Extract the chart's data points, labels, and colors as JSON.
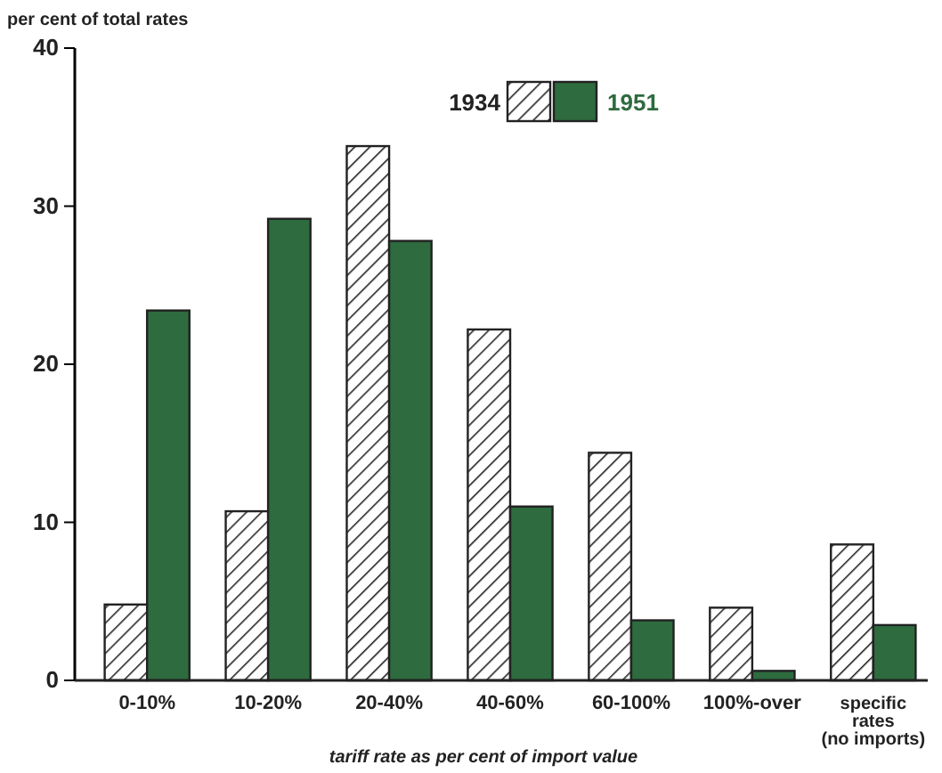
{
  "chart_data": {
    "type": "bar",
    "ylabel": "per cent of total rates",
    "xlabel": "tariff rate as per cent of import value",
    "categories": [
      "0-10%",
      "10-20%",
      "20-40%",
      "40-60%",
      "60-100%",
      "100%-over",
      "specific rates (no imports)"
    ],
    "series": [
      {
        "name": "1934",
        "color": "#222222",
        "values": [
          4.8,
          10.7,
          33.8,
          22.2,
          14.4,
          4.6,
          8.6
        ]
      },
      {
        "name": "1951",
        "color": "#2e6b3e",
        "values": [
          23.4,
          29.2,
          27.8,
          11.0,
          3.8,
          0.6,
          3.5
        ]
      }
    ],
    "ylim": [
      0,
      40
    ],
    "yticks": [
      0,
      10,
      20,
      30,
      40
    ],
    "grid": false,
    "legend": "top right"
  }
}
